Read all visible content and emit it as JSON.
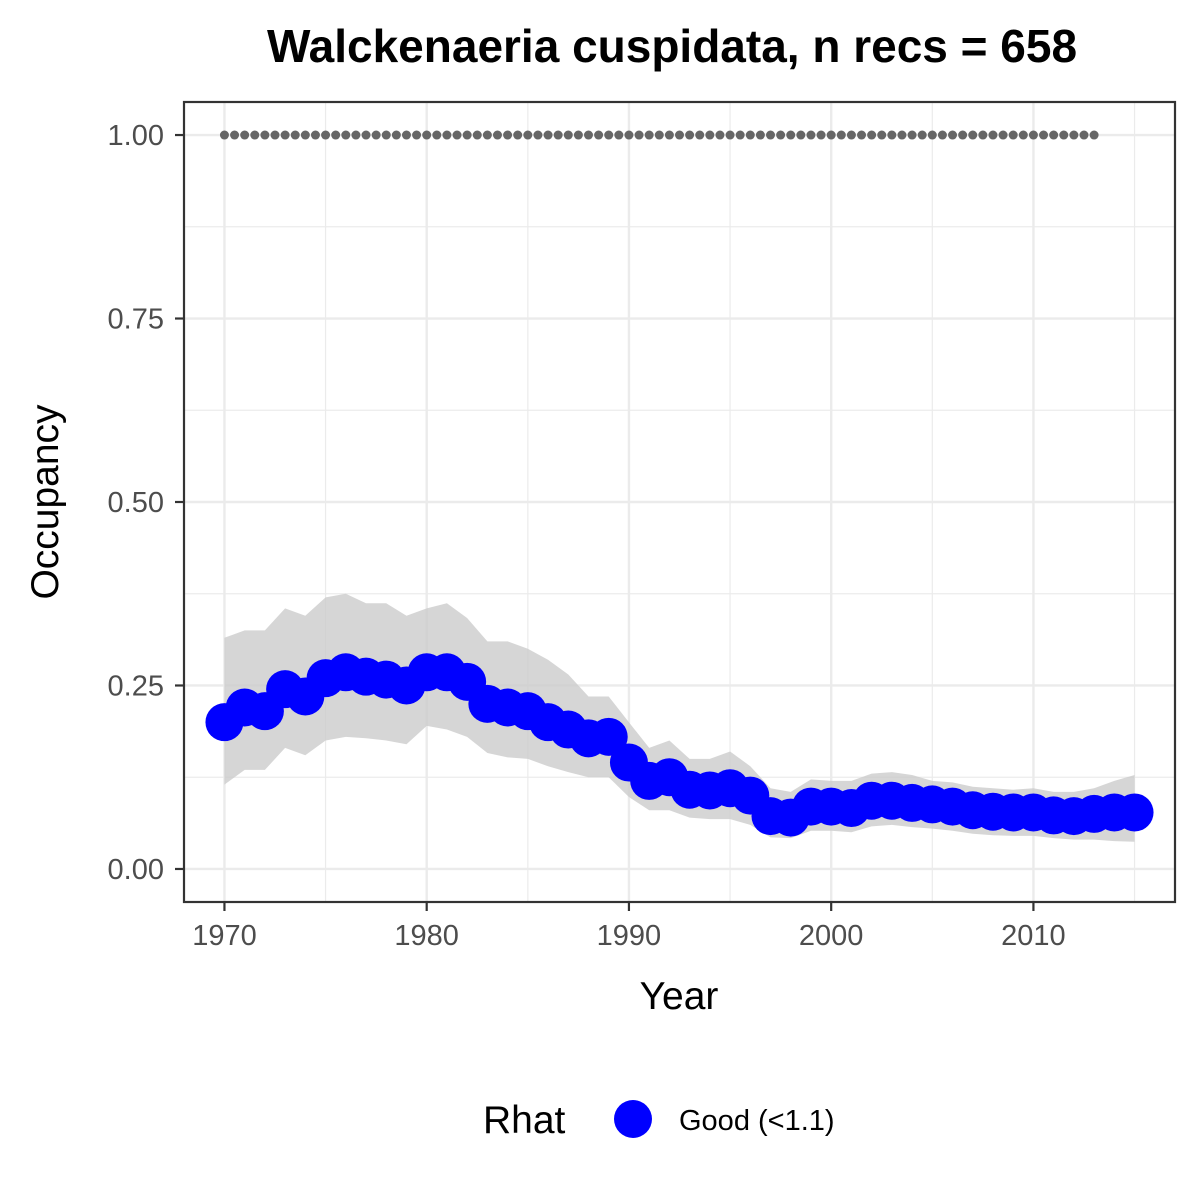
{
  "chart_data": {
    "type": "line",
    "title": "Walckenaeria cuspidata, n recs = 658",
    "xlabel": "Year",
    "ylabel": "Occupancy",
    "xlim": [
      1968,
      2017
    ],
    "ylim": [
      -0.045,
      1.045
    ],
    "x_ticks": [
      1970,
      1980,
      1990,
      2000,
      2010
    ],
    "x_tick_labels": [
      "1970",
      "1980",
      "1990",
      "2000",
      "2010"
    ],
    "y_ticks": [
      0.0,
      0.25,
      0.5,
      0.75,
      1.0
    ],
    "y_tick_labels": [
      "0.00",
      "0.25",
      "0.50",
      "0.75",
      "1.00"
    ],
    "grid": true,
    "series": [
      {
        "x": [
          1970,
          1971,
          1972,
          1973,
          1974,
          1975,
          1976,
          1977,
          1978,
          1979,
          1980,
          1981,
          1982,
          1983,
          1984,
          1985,
          1986,
          1987,
          1988,
          1989,
          1990,
          1991,
          1992,
          1993,
          1994,
          1995,
          1996,
          1997,
          1998,
          1999,
          2000,
          2001,
          2002,
          2003,
          2004,
          2005,
          2006,
          2007,
          2008,
          2009,
          2010,
          2011,
          2012,
          2013,
          2014,
          2015
        ],
        "values": [
          0.2,
          0.22,
          0.215,
          0.245,
          0.235,
          0.26,
          0.268,
          0.262,
          0.258,
          0.25,
          0.268,
          0.268,
          0.255,
          0.225,
          0.22,
          0.215,
          0.2,
          0.19,
          0.178,
          0.18,
          0.145,
          0.12,
          0.125,
          0.108,
          0.107,
          0.11,
          0.1,
          0.072,
          0.07,
          0.085,
          0.085,
          0.083,
          0.093,
          0.093,
          0.09,
          0.088,
          0.085,
          0.08,
          0.078,
          0.077,
          0.077,
          0.073,
          0.072,
          0.075,
          0.077,
          0.077
        ],
        "lower": [
          0.115,
          0.135,
          0.135,
          0.165,
          0.155,
          0.175,
          0.18,
          0.178,
          0.175,
          0.17,
          0.195,
          0.19,
          0.18,
          0.158,
          0.152,
          0.15,
          0.14,
          0.132,
          0.125,
          0.125,
          0.098,
          0.08,
          0.08,
          0.07,
          0.068,
          0.068,
          0.06,
          0.043,
          0.042,
          0.052,
          0.052,
          0.05,
          0.058,
          0.06,
          0.057,
          0.055,
          0.052,
          0.048,
          0.046,
          0.045,
          0.045,
          0.042,
          0.04,
          0.04,
          0.038,
          0.037
        ],
        "upper": [
          0.315,
          0.325,
          0.325,
          0.355,
          0.345,
          0.37,
          0.375,
          0.362,
          0.362,
          0.345,
          0.355,
          0.362,
          0.342,
          0.31,
          0.31,
          0.3,
          0.285,
          0.265,
          0.235,
          0.235,
          0.2,
          0.165,
          0.175,
          0.15,
          0.15,
          0.16,
          0.14,
          0.11,
          0.105,
          0.122,
          0.12,
          0.12,
          0.13,
          0.132,
          0.128,
          0.12,
          0.118,
          0.112,
          0.11,
          0.108,
          0.11,
          0.105,
          0.105,
          0.11,
          0.12,
          0.128
        ]
      },
      {
        "x": [
          1970,
          1971,
          1972,
          1973,
          1974,
          1975,
          1976,
          1977,
          1978,
          1979,
          1980,
          1981,
          1982,
          1983,
          1984,
          1985,
          1986,
          1987,
          1988,
          1989,
          1990,
          1991,
          1992,
          1993,
          1994,
          1995,
          1996,
          1997,
          1998,
          1999,
          2000,
          2001,
          2002,
          2003,
          2004,
          2005,
          2006,
          2007,
          2008,
          2009,
          2010,
          2011,
          2012,
          2013
        ],
        "values": [
          1,
          1,
          1,
          1,
          1,
          1,
          1,
          1,
          1,
          1,
          1,
          1,
          1,
          1,
          1,
          1,
          1,
          1,
          1,
          1,
          1,
          1,
          1,
          1,
          1,
          1,
          1,
          1,
          1,
          1,
          1,
          1,
          1,
          1,
          1,
          1,
          1,
          1,
          1,
          1,
          1,
          1,
          1,
          1
        ]
      }
    ],
    "legend": {
      "title": "Rhat",
      "entries": [
        {
          "label": "Good (<1.1)",
          "color": "#0000ff"
        }
      ],
      "position": "bottom"
    },
    "colors": {
      "points": "#0000ff",
      "ribbon": "#cccccc",
      "reference": "#666666",
      "grid": "#ebebeb",
      "border": "#333333"
    }
  }
}
